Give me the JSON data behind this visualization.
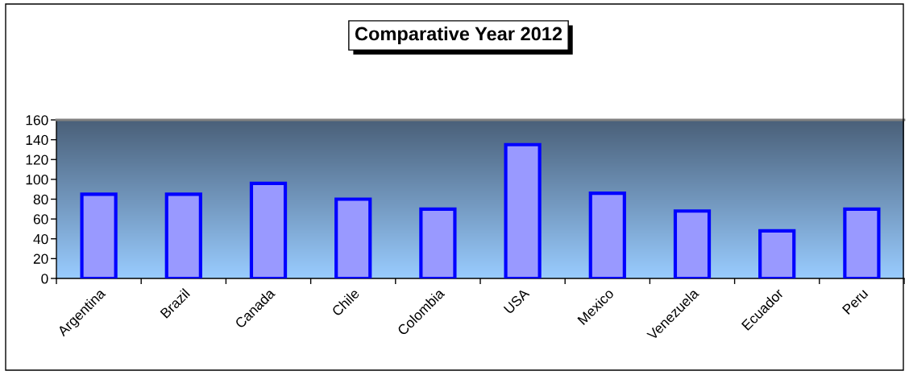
{
  "chart_data": {
    "type": "bar",
    "title": "Comparative Year 2012",
    "categories": [
      "Argentina",
      "Brazil",
      "Canada",
      "Chile",
      "Colombia",
      "USA",
      "Mexico",
      "Venezuela",
      "Ecuador",
      "Peru"
    ],
    "values": [
      85,
      85,
      96,
      80,
      70,
      135,
      86,
      68,
      48,
      70
    ],
    "color": "#9999ff",
    "ylim": [
      0,
      160
    ],
    "yticks": [
      0,
      20,
      40,
      60,
      80,
      100,
      120,
      140,
      160
    ]
  }
}
